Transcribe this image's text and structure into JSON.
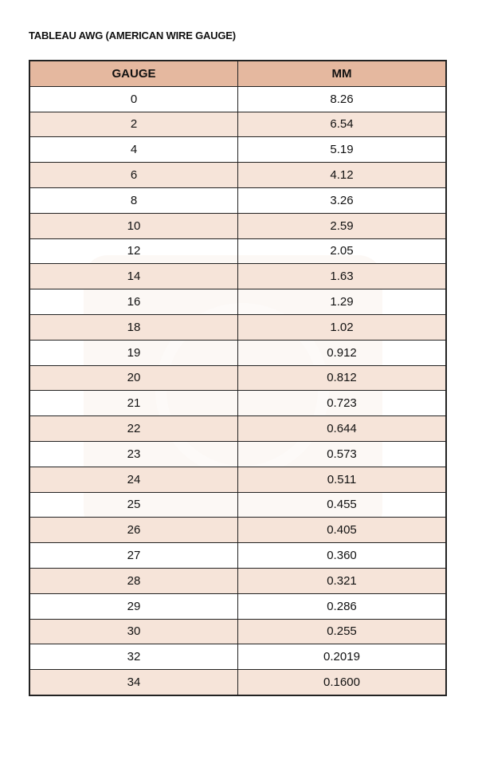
{
  "title": "TABLEAU AWG (AMERICAN WIRE GAUGE)",
  "colors": {
    "header": "#e5b89f",
    "alt_row": "#f6e4d9",
    "border": "#222222"
  },
  "table": {
    "headers": [
      "GAUGE",
      "MM"
    ],
    "rows": [
      [
        "0",
        "8.26"
      ],
      [
        "2",
        "6.54"
      ],
      [
        "4",
        "5.19"
      ],
      [
        "6",
        "4.12"
      ],
      [
        "8",
        "3.26"
      ],
      [
        "10",
        "2.59"
      ],
      [
        "12",
        "2.05"
      ],
      [
        "14",
        "1.63"
      ],
      [
        "16",
        "1.29"
      ],
      [
        "18",
        "1.02"
      ],
      [
        "19",
        "0.912"
      ],
      [
        "20",
        "0.812"
      ],
      [
        "21",
        "0.723"
      ],
      [
        "22",
        "0.644"
      ],
      [
        "23",
        "0.573"
      ],
      [
        "24",
        "0.511"
      ],
      [
        "25",
        "0.455"
      ],
      [
        "26",
        "0.405"
      ],
      [
        "27",
        "0.360"
      ],
      [
        "28",
        "0.321"
      ],
      [
        "29",
        "0.286"
      ],
      [
        "30",
        "0.255"
      ],
      [
        "32",
        "0.2019"
      ],
      [
        "34",
        "0.1600"
      ]
    ]
  }
}
